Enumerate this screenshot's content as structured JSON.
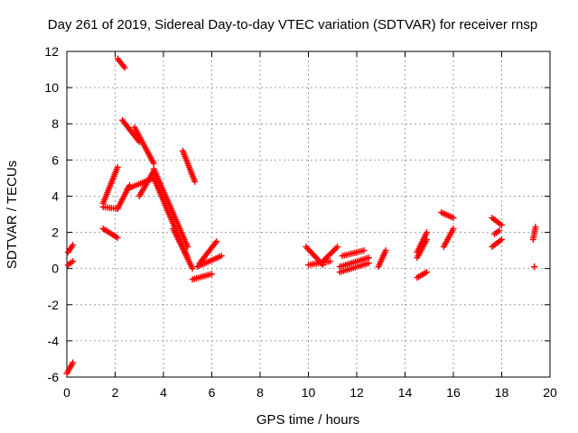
{
  "chart_data": {
    "type": "scatter",
    "title": "Day 261 of 2019, Sidereal Day-to-day VTEC variation (SDTVAR) for receiver rnsp",
    "xlabel": "GPS time / hours",
    "ylabel": "SDTVAR / TECUs",
    "xlim": [
      0,
      20
    ],
    "ylim": [
      -6,
      12
    ],
    "xticks": [
      0,
      2,
      4,
      6,
      8,
      10,
      12,
      14,
      16,
      18,
      20
    ],
    "yticks": [
      -6,
      -4,
      -2,
      0,
      2,
      4,
      6,
      8,
      10,
      12
    ],
    "grid": true,
    "marker": "+",
    "series": [
      {
        "name": "SDTVAR",
        "color": "#ff0000",
        "segments": [
          {
            "x": [
              0.0,
              0.25
            ],
            "y": [
              -5.8,
              -5.2
            ]
          },
          {
            "x": [
              0.05,
              0.25
            ],
            "y": [
              0.2,
              0.4
            ]
          },
          {
            "x": [
              0.05,
              0.25
            ],
            "y": [
              0.9,
              1.3
            ]
          },
          {
            "x": [
              2.1,
              2.4
            ],
            "y": [
              11.6,
              11.1
            ]
          },
          {
            "x": [
              1.5,
              2.1
            ],
            "y": [
              3.6,
              5.6
            ]
          },
          {
            "x": [
              1.5,
              2.1
            ],
            "y": [
              3.4,
              3.3
            ]
          },
          {
            "x": [
              1.5,
              2.1
            ],
            "y": [
              2.2,
              1.7
            ]
          },
          {
            "x": [
              2.1,
              2.6
            ],
            "y": [
              3.3,
              4.6
            ]
          },
          {
            "x": [
              2.5,
              3.6
            ],
            "y": [
              4.4,
              5.0
            ]
          },
          {
            "x": [
              2.3,
              3.0
            ],
            "y": [
              8.2,
              7.0
            ]
          },
          {
            "x": [
              2.8,
              3.6
            ],
            "y": [
              7.8,
              5.8
            ]
          },
          {
            "x": [
              3.0,
              3.6
            ],
            "y": [
              4.0,
              5.4
            ]
          },
          {
            "x": [
              3.6,
              5.0
            ],
            "y": [
              5.5,
              1.2
            ]
          },
          {
            "x": [
              3.6,
              5.0
            ],
            "y": [
              5.0,
              0.6
            ]
          },
          {
            "x": [
              4.4,
              5.2
            ],
            "y": [
              2.2,
              0.0
            ]
          },
          {
            "x": [
              4.8,
              5.3
            ],
            "y": [
              6.5,
              4.8
            ]
          },
          {
            "x": [
              5.2,
              6.0
            ],
            "y": [
              -0.6,
              -0.3
            ]
          },
          {
            "x": [
              5.5,
              6.2
            ],
            "y": [
              0.3,
              1.5
            ]
          },
          {
            "x": [
              5.4,
              6.4
            ],
            "y": [
              0.1,
              0.7
            ]
          },
          {
            "x": [
              9.9,
              10.6
            ],
            "y": [
              1.2,
              0.2
            ]
          },
          {
            "x": [
              10.0,
              10.9
            ],
            "y": [
              0.2,
              0.4
            ]
          },
          {
            "x": [
              10.6,
              11.2
            ],
            "y": [
              0.4,
              1.2
            ]
          },
          {
            "x": [
              11.3,
              12.5
            ],
            "y": [
              0.1,
              0.6
            ]
          },
          {
            "x": [
              11.3,
              12.5
            ],
            "y": [
              -0.2,
              0.3
            ]
          },
          {
            "x": [
              11.4,
              12.3
            ],
            "y": [
              0.7,
              1.0
            ]
          },
          {
            "x": [
              12.9,
              13.2
            ],
            "y": [
              0.1,
              1.0
            ]
          },
          {
            "x": [
              14.5,
              14.9
            ],
            "y": [
              -0.5,
              -0.2
            ]
          },
          {
            "x": [
              14.5,
              14.9
            ],
            "y": [
              0.6,
              1.6
            ]
          },
          {
            "x": [
              14.5,
              14.9
            ],
            "y": [
              0.9,
              2.0
            ]
          },
          {
            "x": [
              15.5,
              16.0
            ],
            "y": [
              3.1,
              2.8
            ]
          },
          {
            "x": [
              15.6,
              16.0
            ],
            "y": [
              1.2,
              2.2
            ]
          },
          {
            "x": [
              17.6,
              18.0
            ],
            "y": [
              2.8,
              2.4
            ]
          },
          {
            "x": [
              17.6,
              18.0
            ],
            "y": [
              1.2,
              1.6
            ]
          },
          {
            "x": [
              17.7,
              17.9
            ],
            "y": [
              1.9,
              2.1
            ]
          },
          {
            "x": [
              19.3,
              19.4
            ],
            "y": [
              1.6,
              2.3
            ]
          },
          {
            "x": [
              19.35,
              19.35
            ],
            "y": [
              0.1,
              0.1
            ]
          }
        ]
      }
    ]
  }
}
